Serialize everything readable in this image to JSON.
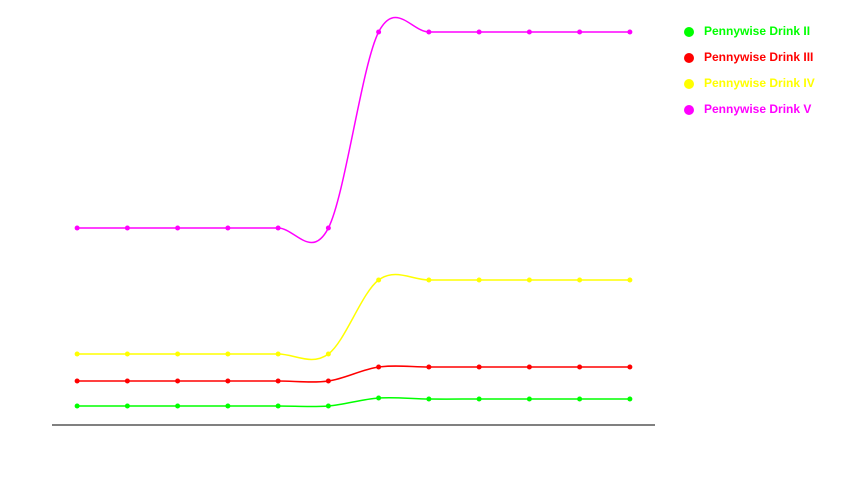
{
  "chart_data": {
    "type": "line",
    "categories": [
      null,
      null,
      null,
      null,
      null,
      null,
      null,
      null,
      null,
      null,
      null,
      null
    ],
    "series": [
      {
        "name": "Pennywise Drink II",
        "color": "#00ff00",
        "values": [
          19,
          19,
          19,
          19,
          19,
          19,
          27,
          26,
          26,
          26,
          26,
          26
        ]
      },
      {
        "name": "Pennywise Drink III",
        "color": "#ff0000",
        "values": [
          44,
          44,
          44,
          44,
          44,
          44,
          58,
          58,
          58,
          58,
          58,
          58
        ]
      },
      {
        "name": "Pennywise Drink IV",
        "color": "#ffff00",
        "values": [
          71,
          71,
          71,
          71,
          71,
          71,
          145,
          145,
          145,
          145,
          145,
          145
        ]
      },
      {
        "name": "Pennywise Drink V",
        "color": "#ff00ff",
        "values": [
          197,
          197,
          197,
          197,
          197,
          197,
          393,
          393,
          393,
          393,
          393,
          393
        ]
      }
    ],
    "ylim": [
      0,
      400
    ],
    "legend": "right",
    "smooth": true
  }
}
